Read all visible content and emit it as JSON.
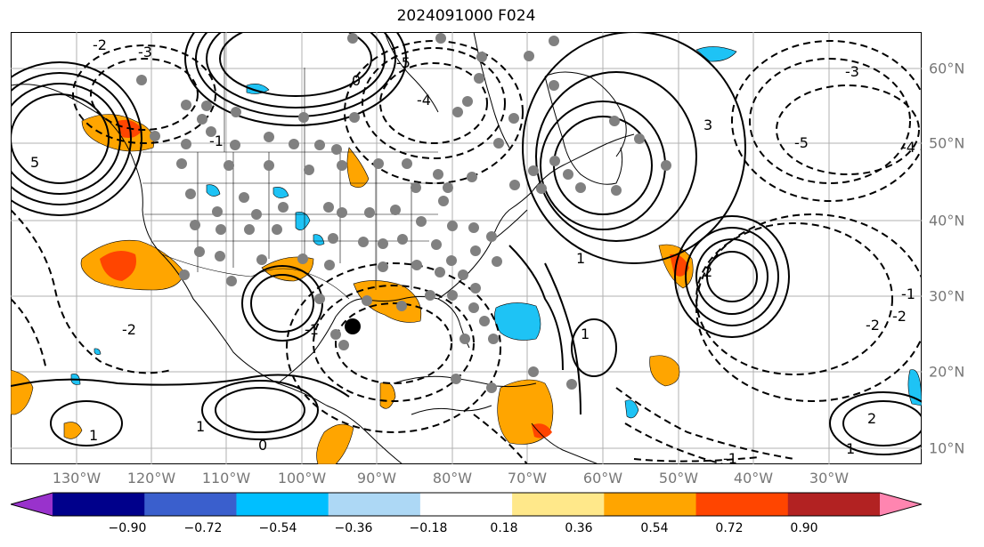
{
  "title": "2024091000 F024",
  "map": {
    "longitude_labels": [
      "130°W",
      "120°W",
      "110°W",
      "100°W",
      "90°W",
      "80°W",
      "70°W",
      "60°W",
      "50°W",
      "40°W",
      "30°W"
    ],
    "latitude_labels": [
      "60°N",
      "50°N",
      "40°N",
      "30°N",
      "20°N",
      "10°N"
    ],
    "solid_contour_labels": [
      "0",
      "1",
      "2",
      "3",
      "5",
      "1",
      "1",
      "1",
      "0",
      "2",
      "1"
    ],
    "dashed_contour_labels": [
      "-1",
      "-2",
      "-3",
      "-4",
      "-5",
      "-1",
      "-2",
      "-3",
      "-4",
      "-5",
      "-2",
      "-1",
      "-2",
      "-1"
    ],
    "marker_color": "#000000",
    "station_dot_color": "#808080"
  },
  "colorbar": {
    "ticks": [
      "−0.90",
      "−0.72",
      "−0.54",
      "−0.36",
      "−0.18",
      "0.18",
      "0.36",
      "0.54",
      "0.72",
      "0.90"
    ],
    "colors": [
      "#9932cc",
      "#00008b",
      "#3a5fcd",
      "#00bfff",
      "#add8f5",
      "#ffffff",
      "#ffe88a",
      "#ffa500",
      "#ff4500",
      "#b22222",
      "#ff85b0"
    ]
  }
}
